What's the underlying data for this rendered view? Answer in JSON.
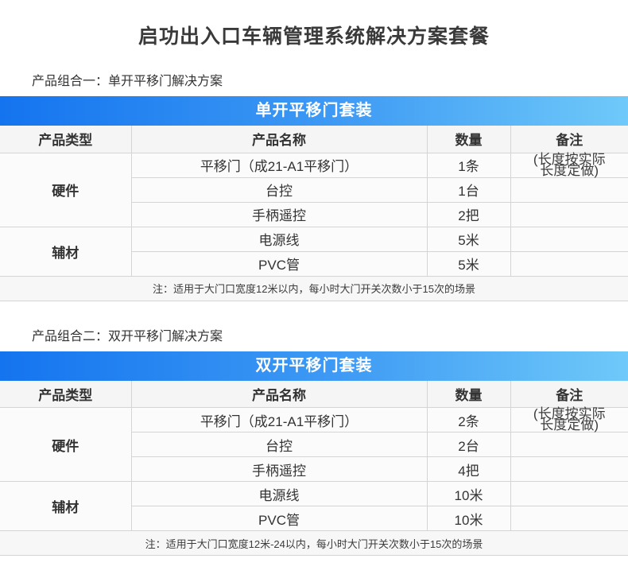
{
  "page": {
    "title": "启功出入口车辆管理系统解决方案套餐"
  },
  "colors": {
    "banner_gradient_left": "#1474ef",
    "banner_gradient_right": "#6fc9f9",
    "banner_text": "#ffffff",
    "table_border": "#d5d5d5",
    "header_bg": "#f5f5f5",
    "cell_bg": "#fbfbfb",
    "note_bg": "#f7f7f7",
    "text": "#333333"
  },
  "sections": [
    {
      "label": "产品组合一：单开平移门解决方案",
      "banner": "单开平移门套装",
      "columns": [
        "产品类型",
        "产品名称",
        "数量",
        "备注"
      ],
      "groups": [
        {
          "type": "硬件",
          "rows": [
            {
              "name": "平移门（成21-A1平移门）",
              "qty": "1条",
              "remark": "(长度按实际\n长度定做)"
            },
            {
              "name": "台控",
              "qty": "1台",
              "remark": ""
            },
            {
              "name": "手柄遥控",
              "qty": "2把",
              "remark": ""
            }
          ]
        },
        {
          "type": "辅材",
          "rows": [
            {
              "name": "电源线",
              "qty": "5米",
              "remark": ""
            },
            {
              "name": "PVC管",
              "qty": "5米",
              "remark": ""
            }
          ]
        }
      ],
      "note": "注：适用于大门口宽度12米以内，每小时大门开关次数小于15次的场景"
    },
    {
      "label": "产品组合二：双开平移门解决方案",
      "banner": "双开平移门套装",
      "columns": [
        "产品类型",
        "产品名称",
        "数量",
        "备注"
      ],
      "groups": [
        {
          "type": "硬件",
          "rows": [
            {
              "name": "平移门（成21-A1平移门）",
              "qty": "2条",
              "remark": "(长度按实际\n长度定做)"
            },
            {
              "name": "台控",
              "qty": "2台",
              "remark": ""
            },
            {
              "name": "手柄遥控",
              "qty": "4把",
              "remark": ""
            }
          ]
        },
        {
          "type": "辅材",
          "rows": [
            {
              "name": "电源线",
              "qty": "10米",
              "remark": ""
            },
            {
              "name": "PVC管",
              "qty": "10米",
              "remark": ""
            }
          ]
        }
      ],
      "note": "注：适用于大门口宽度12米-24以内，每小时大门开关次数小于15次的场景"
    }
  ]
}
